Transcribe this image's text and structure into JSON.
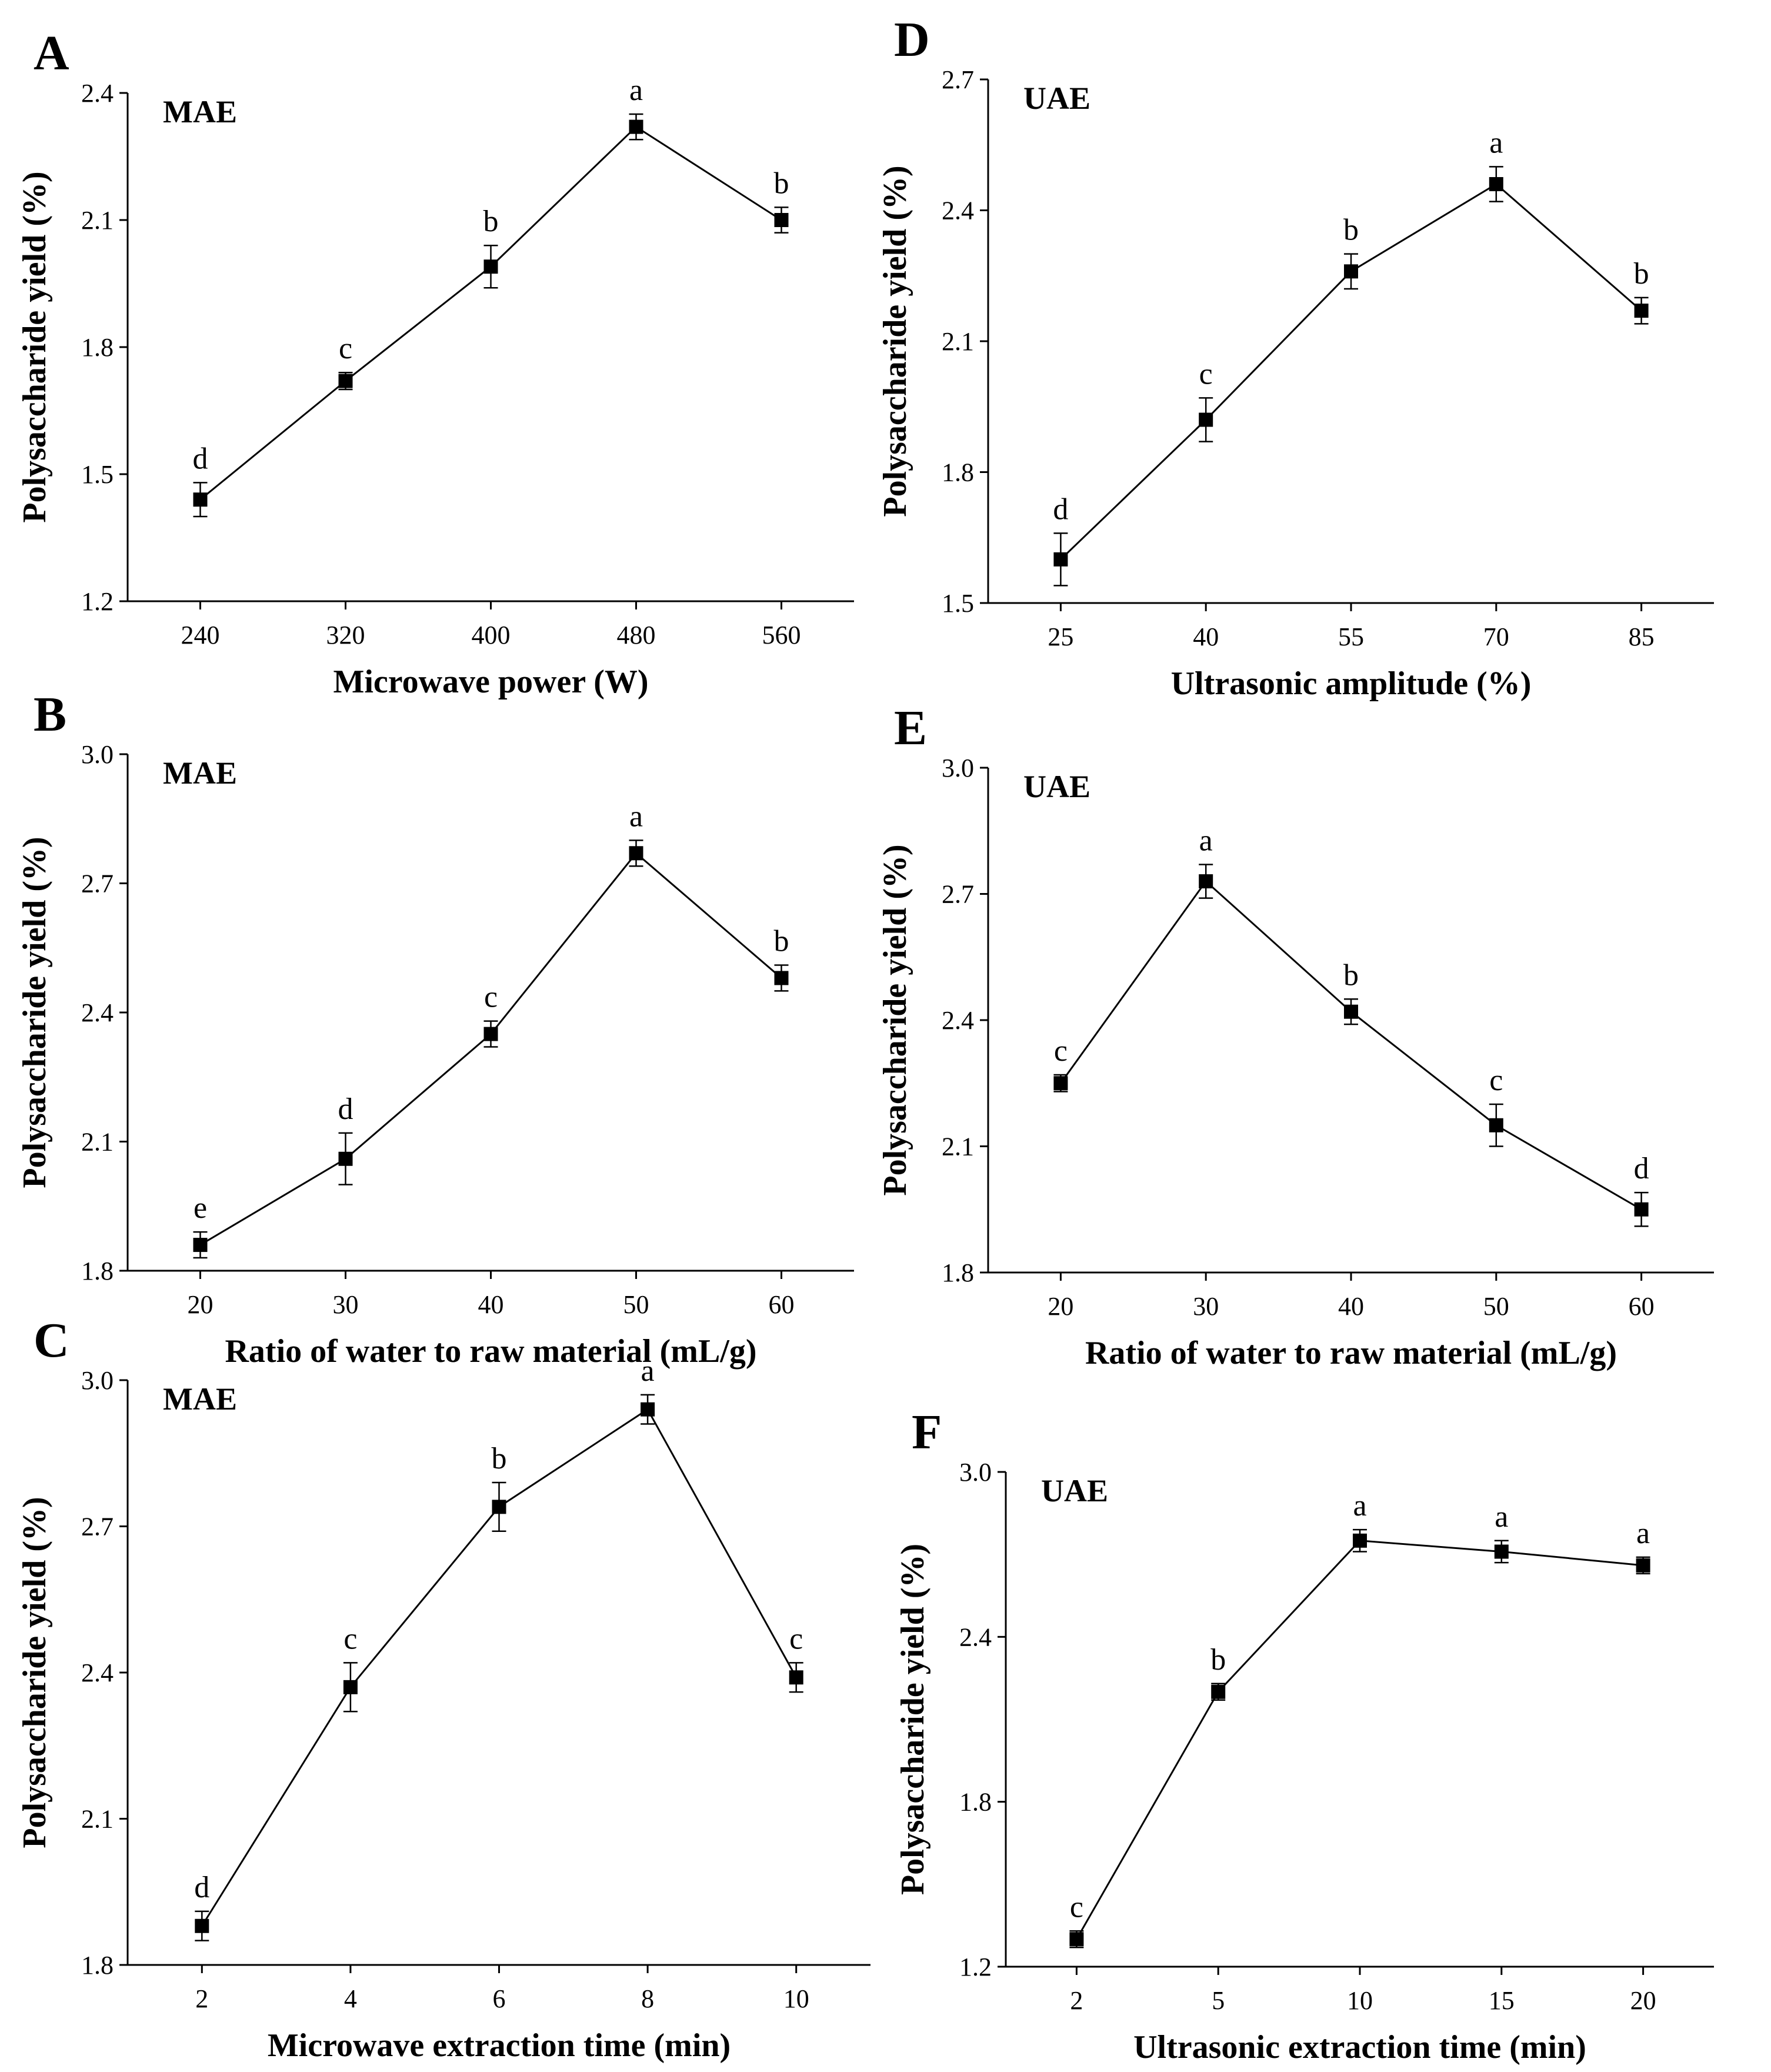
{
  "chart_data": [
    {
      "panel": "A",
      "type": "line",
      "label": "MAE",
      "xlabel": "Microwave power (W)",
      "ylabel": "Polysaccharide yield (%)",
      "categories": [
        "240",
        "320",
        "400",
        "480",
        "560"
      ],
      "values": [
        1.44,
        1.72,
        1.99,
        2.32,
        2.1
      ],
      "errors": [
        0.04,
        0.02,
        0.05,
        0.03,
        0.03
      ],
      "significance": [
        "d",
        "c",
        "b",
        "a",
        "b"
      ],
      "ylim": [
        1.2,
        2.4
      ],
      "yticks": [
        "1.2",
        "1.5",
        "1.8",
        "2.1",
        "2.4"
      ]
    },
    {
      "panel": "B",
      "type": "line",
      "label": "MAE",
      "xlabel": "Ratio of water to raw material (mL/g)",
      "ylabel": "Polysaccharide yield (%)",
      "categories": [
        "20",
        "30",
        "40",
        "50",
        "60"
      ],
      "values": [
        1.86,
        2.06,
        2.35,
        2.77,
        2.48
      ],
      "errors": [
        0.03,
        0.06,
        0.03,
        0.03,
        0.03
      ],
      "significance": [
        "e",
        "d",
        "c",
        "a",
        "b"
      ],
      "ylim": [
        1.8,
        3.0
      ],
      "yticks": [
        "1.8",
        "2.1",
        "2.4",
        "2.7",
        "3.0"
      ]
    },
    {
      "panel": "C",
      "type": "line",
      "label": "MAE",
      "xlabel": "Microwave extraction time (min)",
      "ylabel": "Polysaccharide yield  (%)",
      "categories": [
        "2",
        "4",
        "6",
        "8",
        "10"
      ],
      "values": [
        1.88,
        2.37,
        2.74,
        2.94,
        2.39
      ],
      "errors": [
        0.03,
        0.05,
        0.05,
        0.03,
        0.03
      ],
      "significance": [
        "d",
        "c",
        "b",
        "a",
        "c"
      ],
      "ylim": [
        1.8,
        3.0
      ],
      "yticks": [
        "1.8",
        "2.1",
        "2.4",
        "2.7",
        "3.0"
      ]
    },
    {
      "panel": "D",
      "type": "line",
      "label": "UAE",
      "xlabel": "Ultrasonic amplitude (%)",
      "ylabel": "Polysaccharide yield (%)",
      "categories": [
        "25",
        "40",
        "55",
        "70",
        "85"
      ],
      "values": [
        1.6,
        1.92,
        2.26,
        2.46,
        2.17
      ],
      "errors": [
        0.06,
        0.05,
        0.04,
        0.04,
        0.03
      ],
      "significance": [
        "d",
        "c",
        "b",
        "a",
        "b"
      ],
      "ylim": [
        1.5,
        2.7
      ],
      "yticks": [
        "1.5",
        "1.8",
        "2.1",
        "2.4",
        "2.7"
      ]
    },
    {
      "panel": "E",
      "type": "line",
      "label": "UAE",
      "xlabel": "Ratio of water to raw material (mL/g)",
      "ylabel": "Polysaccharide yield  (%)",
      "categories": [
        "20",
        "30",
        "40",
        "50",
        "60"
      ],
      "values": [
        2.25,
        2.73,
        2.42,
        2.15,
        1.95
      ],
      "errors": [
        0.02,
        0.04,
        0.03,
        0.05,
        0.04
      ],
      "significance": [
        "c",
        "a",
        "b",
        "c",
        "d"
      ],
      "ylim": [
        1.8,
        3.0
      ],
      "yticks": [
        "1.8",
        "2.1",
        "2.4",
        "2.7",
        "3.0"
      ]
    },
    {
      "panel": "F",
      "type": "line",
      "label": "UAE",
      "xlabel": "Ultrasonic extraction time (min)",
      "ylabel": "Polysaccharide yield  (%)",
      "categories": [
        "2",
        "5",
        "10",
        "15",
        "20"
      ],
      "values": [
        1.3,
        2.2,
        2.75,
        2.71,
        2.66
      ],
      "errors": [
        0.03,
        0.03,
        0.04,
        0.04,
        0.03
      ],
      "significance": [
        "c",
        "b",
        "a",
        "a",
        "a"
      ],
      "ylim": [
        1.2,
        3.0
      ],
      "yticks": [
        "1.2",
        "1.8",
        "2.4",
        "3.0"
      ]
    }
  ]
}
